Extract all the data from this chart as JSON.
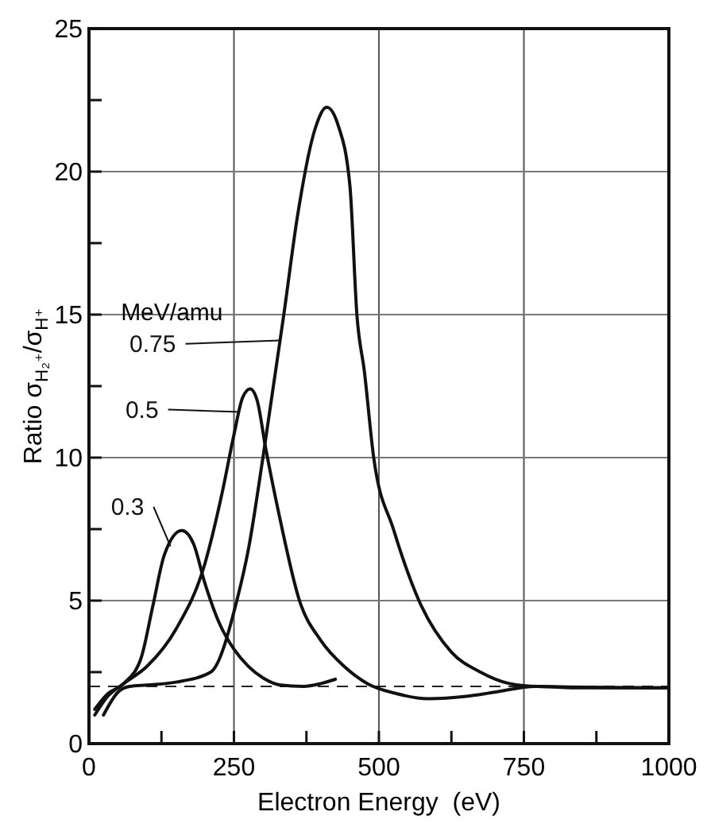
{
  "chart_data": {
    "type": "line",
    "xlabel": "Electron Energy  (eV)",
    "ylabel": "Ratio  σ$_{H₂⁺}$/σ$_{H⁺}$",
    "legend_title": "MeV/amu",
    "xlim": [
      0,
      1000
    ],
    "ylim": [
      0,
      25
    ],
    "xticks": [
      0,
      {
        "value": 125,
        "label": null
      },
      250,
      {
        "value": 375,
        "label": null
      },
      500,
      {
        "value": 625,
        "label": null
      },
      750,
      {
        "value": 875,
        "label": null
      },
      1000
    ],
    "yticks": [
      0,
      {
        "value": 2.5,
        "label": null
      },
      5,
      {
        "value": 7.5,
        "label": null
      },
      10,
      {
        "value": 12.5,
        "label": null
      },
      15,
      {
        "value": 17.5,
        "label": null
      },
      20,
      {
        "value": 22.5,
        "label": null
      },
      25
    ],
    "grid": true,
    "legend": "left",
    "marker": "none",
    "line_style": "solid",
    "ref_lines": [
      {
        "axis": "y",
        "value": 2,
        "line_style": "dashed",
        "color": "#222222"
      }
    ],
    "series": [
      {
        "name": "0.3",
        "color": "#111111",
        "x": [
          10,
          30,
          60,
          90,
          110,
          130,
          160,
          180,
          200,
          225,
          250,
          275,
          300,
          330,
          370,
          400,
          425
        ],
        "values": [
          1.2,
          1.7,
          2.1,
          3.0,
          4.8,
          6.6,
          7.45,
          7.0,
          5.6,
          4.2,
          3.3,
          2.7,
          2.3,
          2.05,
          2.0,
          2.1,
          2.25
        ]
      },
      {
        "name": "0.5",
        "color": "#111111",
        "x": [
          10,
          30,
          60,
          100,
          150,
          200,
          230,
          250,
          265,
          278,
          290,
          305,
          330,
          363,
          400,
          440,
          480,
          530,
          585,
          650,
          700,
          770,
          850,
          1000
        ],
        "values": [
          1.0,
          1.6,
          2.1,
          2.7,
          4.0,
          6.3,
          8.8,
          10.8,
          12.1,
          12.4,
          12.0,
          10.3,
          7.8,
          5.0,
          3.6,
          2.7,
          2.1,
          1.75,
          1.57,
          1.65,
          1.8,
          2.0,
          1.95,
          1.95
        ]
      },
      {
        "name": "0.75",
        "color": "#111111",
        "x": [
          25,
          50,
          70,
          100,
          150,
          210,
          255,
          275,
          300,
          336,
          360,
          390,
          410,
          430,
          450,
          462,
          475,
          491,
          525,
          569,
          625,
          675,
          725,
          775,
          1000
        ],
        "values": [
          1.0,
          1.8,
          2.0,
          2.05,
          2.15,
          2.5,
          5.0,
          6.8,
          10.0,
          15.0,
          18.5,
          21.5,
          22.25,
          21.6,
          19.5,
          15.0,
          13.0,
          10.0,
          7.5,
          5.0,
          3.2,
          2.5,
          2.1,
          2.0,
          1.95
        ]
      }
    ]
  }
}
